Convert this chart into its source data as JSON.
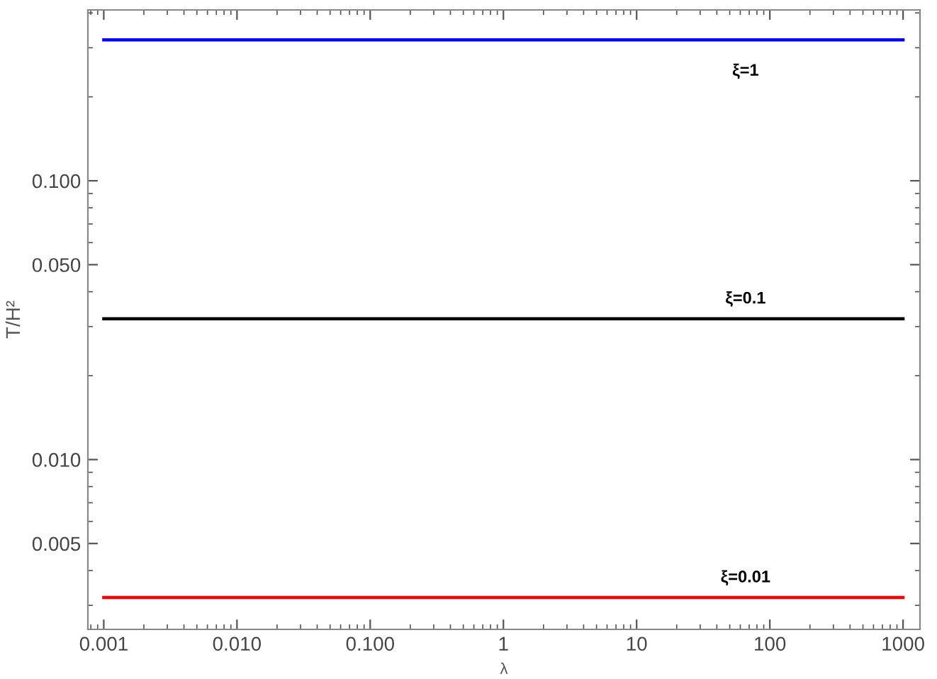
{
  "chart_data": {
    "type": "line",
    "xlabel": "λ",
    "ylabel": "T/H²",
    "log": "xy",
    "grid": false,
    "marker": "none",
    "line_style": "solid",
    "xlim": [
      0.00076,
      1340
    ],
    "ylim": [
      0.00246,
      0.41
    ],
    "xticks": [
      {
        "value": 0.001,
        "label": "0.001"
      },
      {
        "value": 0.01,
        "label": "0.010"
      },
      {
        "value": 0.1,
        "label": "0.100"
      },
      1,
      10,
      100,
      1000
    ],
    "yticks": [
      {
        "value": 0.005,
        "label": "0.005"
      },
      {
        "value": 0.01,
        "label": "0.010"
      },
      {
        "value": 0.05,
        "label": "0.050"
      },
      {
        "value": 0.1,
        "label": "0.100"
      }
    ],
    "x": [
      0.001,
      1000
    ],
    "series": [
      {
        "name": "ξ=1",
        "color": "#0000ff",
        "values": [
          0.32,
          0.32
        ]
      },
      {
        "name": "ξ=0.1",
        "color": "#000000",
        "values": [
          0.032,
          0.032
        ]
      },
      {
        "name": "ξ=0.01",
        "color": "#ff0000",
        "values": [
          0.0032,
          0.0032
        ]
      }
    ]
  }
}
